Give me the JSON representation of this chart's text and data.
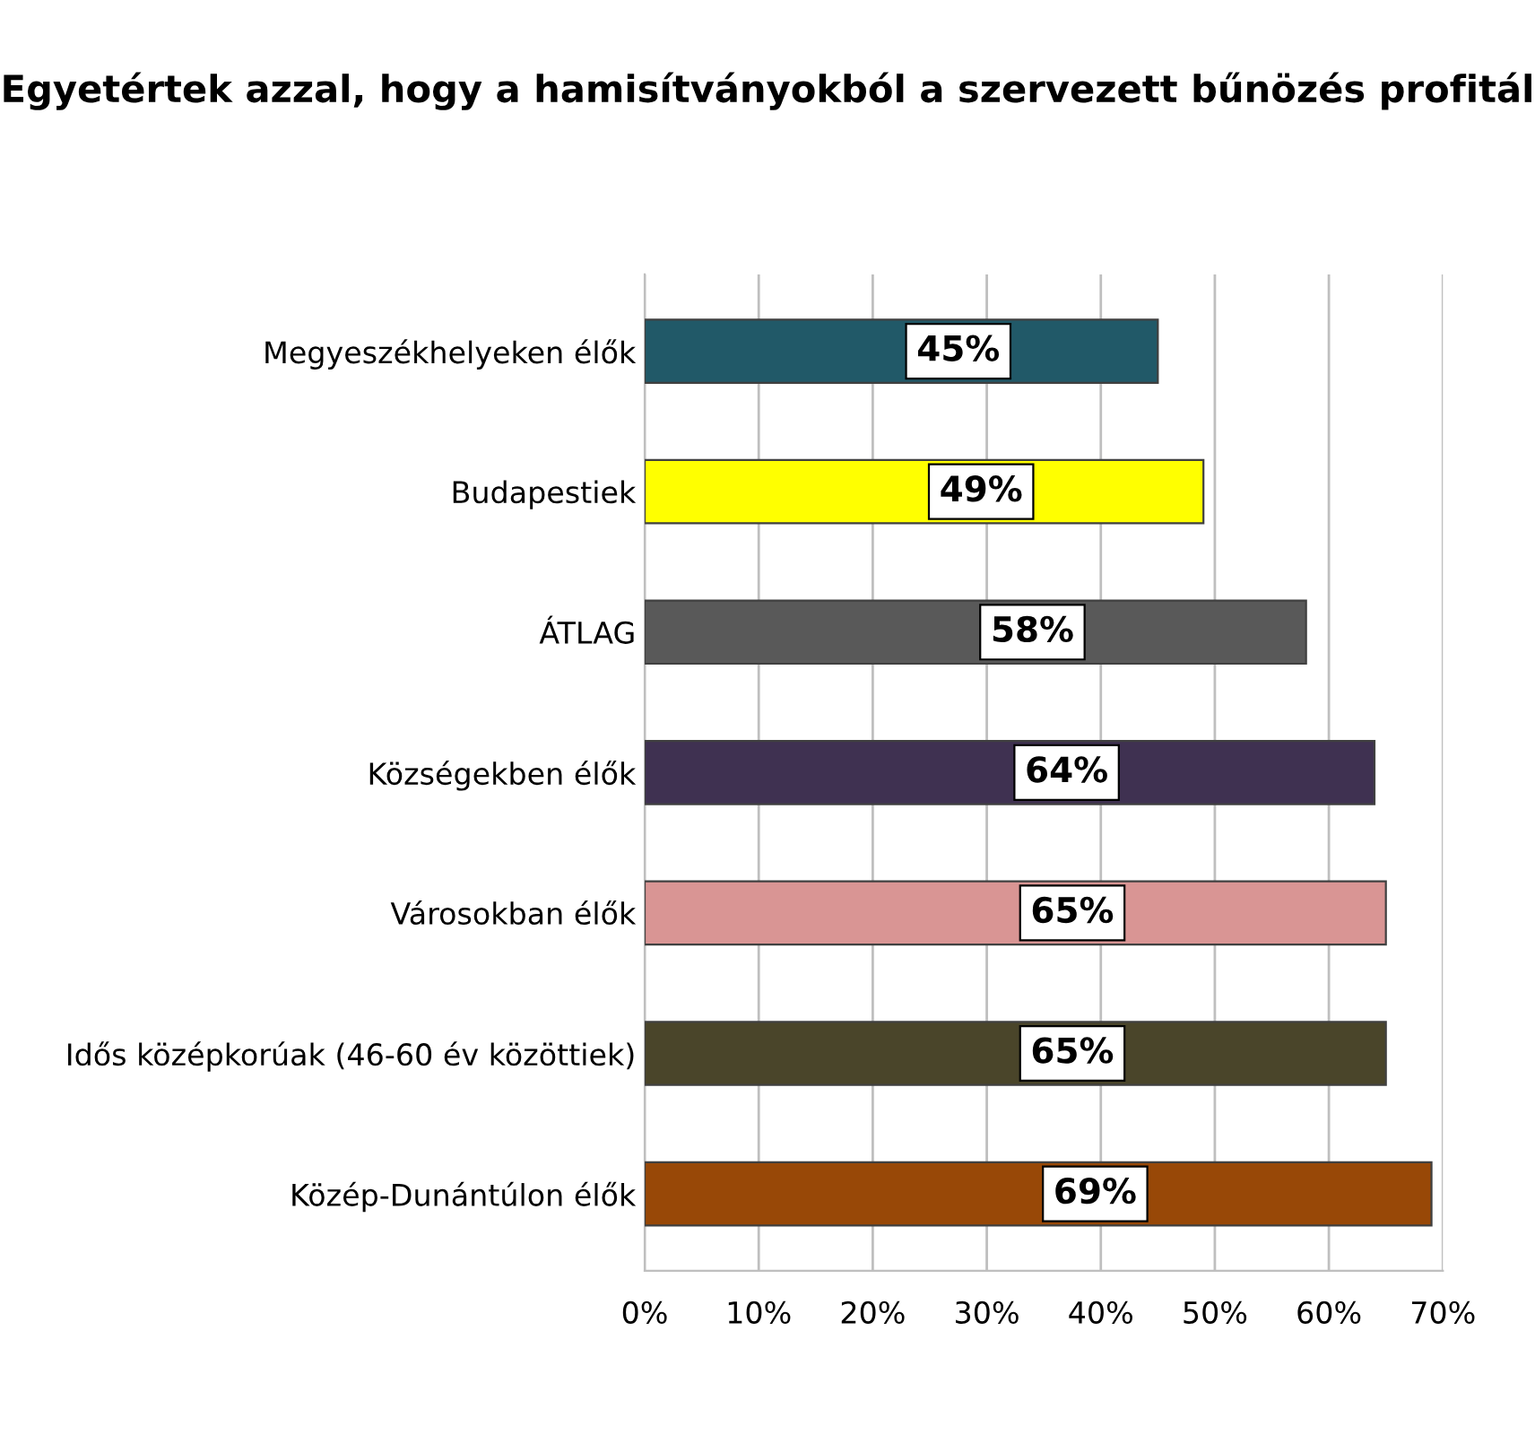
{
  "chart_data": {
    "type": "bar",
    "orientation": "horizontal",
    "title": "Egyetértek azzal, hogy a hamisítványokból a szervezett bűnözés profitál",
    "categories": [
      "Megyeszékhelyeken élők",
      "Budapestiek",
      "ÁTLAG",
      "Községekben élők",
      "Városokban élők",
      "Idős középkorúak (46-60 év közöttiek)",
      "Közép-Dunántúlon élők"
    ],
    "values": [
      45,
      49,
      58,
      64,
      65,
      65,
      69
    ],
    "colors": [
      "#215968",
      "#ffff00",
      "#595959",
      "#3f3151",
      "#d99594",
      "#4a452a",
      "#984807"
    ],
    "value_labels": [
      "45%",
      "49%",
      "58%",
      "64%",
      "65%",
      "65%",
      "69%"
    ],
    "xlim": [
      0,
      70
    ],
    "xticks": [
      {
        "value": 0,
        "label": "0%"
      },
      {
        "value": 10,
        "label": "10%"
      },
      {
        "value": 20,
        "label": "20%"
      },
      {
        "value": 30,
        "label": "30%"
      },
      {
        "value": 40,
        "label": "40%"
      },
      {
        "value": 50,
        "label": "50%"
      },
      {
        "value": 60,
        "label": "60%"
      },
      {
        "value": 70,
        "label": "70%"
      }
    ],
    "grid": "x",
    "legend": false
  }
}
